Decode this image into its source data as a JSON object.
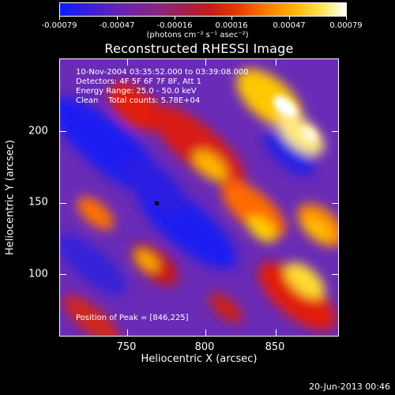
{
  "colorbar": {
    "labels": [
      "-0.00079",
      "-0.00047",
      "-0.00016",
      "0.00016",
      "0.00047",
      "0.00079"
    ],
    "units": "(photons cm⁻² s⁻¹ asec⁻²)"
  },
  "title": "Reconstructed RHESSI Image",
  "info": {
    "time": "10-Nov-2004 03:35:52.000 to 03:39:08.000",
    "detectors": "Detectors: 4F 5F 6F 7F 8F, Att 1",
    "energy": "Energy Range: 25.0 - 50.0 keV",
    "clean": "Clean    Total counts: 5.78E+04",
    "peak": "Position of Peak = [846,225]"
  },
  "axes": {
    "xlabel": "Heliocentric X (arcsec)",
    "ylabel": "Heliocentric Y (arcsec)",
    "xticks": [
      "750",
      "800",
      "850"
    ],
    "yticks": [
      "200",
      "150",
      "100"
    ]
  },
  "date": "20-Jun-2013 00:46"
}
